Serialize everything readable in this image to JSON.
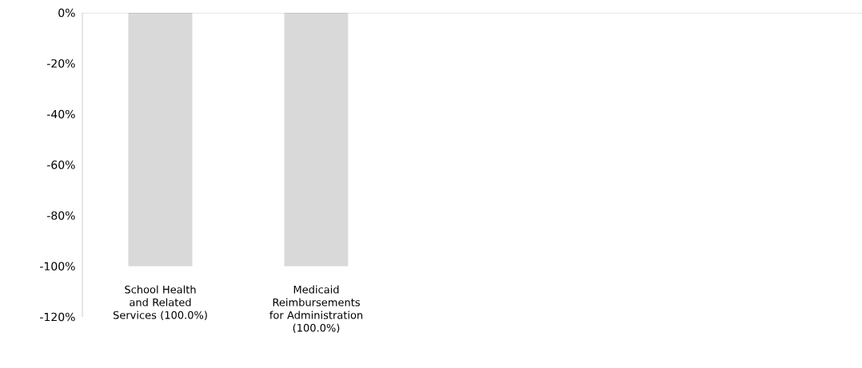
{
  "chart_data": {
    "type": "bar",
    "categories": [
      "School Health and Related Services (100.0%)",
      "Medicaid Reimbursements for Administration (100.0%)",
      null,
      null,
      null
    ],
    "values": [
      -100,
      -100,
      null,
      null,
      null
    ],
    "color": "#d9d9d9",
    "ylim": [
      -120,
      0
    ],
    "yticks": [
      {
        "value": -120,
        "label": "-120%"
      },
      {
        "value": -100,
        "label": "-100%"
      },
      {
        "value": -80,
        "label": "-80%"
      },
      {
        "value": -60,
        "label": "-60%"
      },
      {
        "value": -40,
        "label": "-40%"
      },
      {
        "value": -20,
        "label": "-20%"
      },
      {
        "value": 0,
        "label": "0%"
      }
    ]
  }
}
